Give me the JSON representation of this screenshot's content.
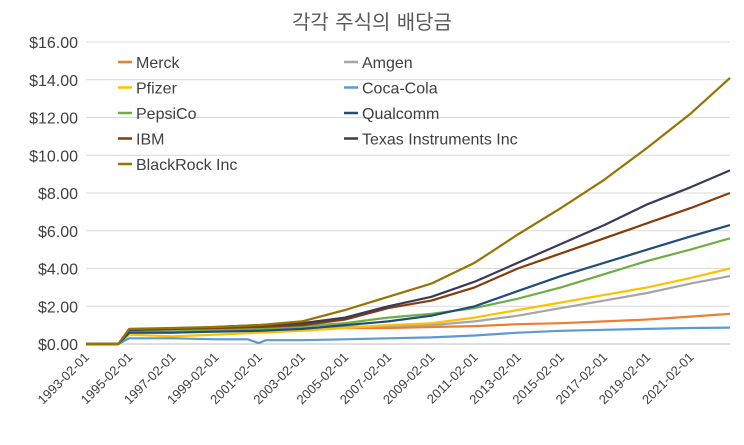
{
  "chart_data": {
    "type": "line",
    "title": "각각 주식의 배당금",
    "xlabel": "",
    "ylabel": "",
    "ylim": [
      0,
      16
    ],
    "yticks": [
      "$0.00",
      "$2.00",
      "$4.00",
      "$6.00",
      "$8.00",
      "$10.00",
      "$12.00",
      "$14.00",
      "$16.00"
    ],
    "xticks": [
      "1993-02-01",
      "1995-02-01",
      "1997-02-01",
      "1999-02-01",
      "2001-02-01",
      "2003-02-01",
      "2005-02-01",
      "2007-02-01",
      "2009-02-01",
      "2011-02-01",
      "2013-02-01",
      "2015-02-01",
      "2017-02-01",
      "2019-02-01",
      "2021-02-01"
    ],
    "xrange": [
      "1993-02-01",
      "2022-12-01"
    ],
    "grid": "horizontal",
    "legend_position": "upper-left",
    "series": [
      {
        "name": "Merck",
        "color": "#ED7D31",
        "points": [
          [
            "1993-02-01",
            0
          ],
          [
            "1994-08-01",
            0
          ],
          [
            "1995-02-01",
            0.6
          ],
          [
            "1997-02-01",
            0.6
          ],
          [
            "1999-02-01",
            0.7
          ],
          [
            "2001-02-01",
            0.75
          ],
          [
            "2003-02-01",
            0.8
          ],
          [
            "2005-02-01",
            0.85
          ],
          [
            "2007-02-01",
            0.85
          ],
          [
            "2009-02-01",
            0.9
          ],
          [
            "2011-02-01",
            0.95
          ],
          [
            "2013-02-01",
            1.05
          ],
          [
            "2015-02-01",
            1.1
          ],
          [
            "2017-02-01",
            1.2
          ],
          [
            "2019-02-01",
            1.3
          ],
          [
            "2021-02-01",
            1.45
          ],
          [
            "2022-12-01",
            1.6
          ]
        ]
      },
      {
        "name": "Amgen",
        "color": "#A5A5A5",
        "points": [
          [
            "1993-02-01",
            0
          ],
          [
            "1994-08-01",
            0
          ],
          [
            "1995-02-01",
            0.7
          ],
          [
            "1997-02-01",
            0.7
          ],
          [
            "1999-02-01",
            0.75
          ],
          [
            "2001-02-01",
            0.8
          ],
          [
            "2003-02-01",
            0.85
          ],
          [
            "2005-02-01",
            0.9
          ],
          [
            "2007-02-01",
            0.95
          ],
          [
            "2009-02-01",
            1.0
          ],
          [
            "2011-02-01",
            1.2
          ],
          [
            "2013-02-01",
            1.5
          ],
          [
            "2015-02-01",
            1.9
          ],
          [
            "2017-02-01",
            2.3
          ],
          [
            "2019-02-01",
            2.7
          ],
          [
            "2021-02-01",
            3.2
          ],
          [
            "2022-12-01",
            3.6
          ]
        ]
      },
      {
        "name": "Pfizer",
        "color": "#FFC000",
        "points": [
          [
            "1993-02-01",
            0
          ],
          [
            "1994-08-01",
            0
          ],
          [
            "1995-02-01",
            0.5
          ],
          [
            "1997-02-01",
            0.4
          ],
          [
            "1999-02-01",
            0.5
          ],
          [
            "2001-02-01",
            0.6
          ],
          [
            "2003-02-01",
            0.7
          ],
          [
            "2005-02-01",
            0.85
          ],
          [
            "2007-02-01",
            1.0
          ],
          [
            "2009-02-01",
            1.1
          ],
          [
            "2011-02-01",
            1.4
          ],
          [
            "2013-02-01",
            1.8
          ],
          [
            "2015-02-01",
            2.2
          ],
          [
            "2017-02-01",
            2.6
          ],
          [
            "2019-02-01",
            3.0
          ],
          [
            "2021-02-01",
            3.5
          ],
          [
            "2022-12-01",
            4.0
          ]
        ]
      },
      {
        "name": "Coca-Cola",
        "color": "#5B9BD5",
        "points": [
          [
            "1993-02-01",
            0
          ],
          [
            "1994-08-01",
            0
          ],
          [
            "1995-02-01",
            0.3
          ],
          [
            "1997-02-01",
            0.3
          ],
          [
            "1999-02-01",
            0.25
          ],
          [
            "2000-08-01",
            0.25
          ],
          [
            "2001-02-01",
            0.05
          ],
          [
            "2001-06-01",
            0.2
          ],
          [
            "2003-02-01",
            0.2
          ],
          [
            "2005-02-01",
            0.25
          ],
          [
            "2007-02-01",
            0.3
          ],
          [
            "2009-02-01",
            0.35
          ],
          [
            "2011-02-01",
            0.45
          ],
          [
            "2013-02-01",
            0.6
          ],
          [
            "2015-02-01",
            0.7
          ],
          [
            "2017-02-01",
            0.75
          ],
          [
            "2019-02-01",
            0.8
          ],
          [
            "2021-02-01",
            0.85
          ],
          [
            "2022-12-01",
            0.87
          ]
        ]
      },
      {
        "name": "PepsiCo",
        "color": "#70AD47",
        "points": [
          [
            "1993-02-01",
            0
          ],
          [
            "1994-08-01",
            0
          ],
          [
            "1995-02-01",
            0.7
          ],
          [
            "1997-02-01",
            0.65
          ],
          [
            "1999-02-01",
            0.75
          ],
          [
            "2001-02-01",
            0.8
          ],
          [
            "2003-02-01",
            0.95
          ],
          [
            "2005-02-01",
            1.1
          ],
          [
            "2007-02-01",
            1.4
          ],
          [
            "2009-02-01",
            1.6
          ],
          [
            "2011-02-01",
            1.9
          ],
          [
            "2013-02-01",
            2.4
          ],
          [
            "2015-02-01",
            3.0
          ],
          [
            "2017-02-01",
            3.7
          ],
          [
            "2019-02-01",
            4.4
          ],
          [
            "2021-02-01",
            5.0
          ],
          [
            "2022-12-01",
            5.6
          ]
        ]
      },
      {
        "name": "Qualcomm",
        "color": "#1F4E79",
        "points": [
          [
            "1993-02-01",
            0
          ],
          [
            "1994-08-01",
            0
          ],
          [
            "1995-02-01",
            0.6
          ],
          [
            "1997-02-01",
            0.6
          ],
          [
            "1999-02-01",
            0.65
          ],
          [
            "2001-02-01",
            0.7
          ],
          [
            "2003-02-01",
            0.8
          ],
          [
            "2005-02-01",
            1.0
          ],
          [
            "2007-02-01",
            1.2
          ],
          [
            "2009-02-01",
            1.5
          ],
          [
            "2011-02-01",
            2.0
          ],
          [
            "2013-02-01",
            2.8
          ],
          [
            "2015-02-01",
            3.6
          ],
          [
            "2017-02-01",
            4.3
          ],
          [
            "2019-02-01",
            5.0
          ],
          [
            "2021-02-01",
            5.7
          ],
          [
            "2022-12-01",
            6.3
          ]
        ]
      },
      {
        "name": "IBM",
        "color": "#843C0C",
        "points": [
          [
            "1993-02-01",
            0
          ],
          [
            "1994-08-01",
            0
          ],
          [
            "1995-02-01",
            0.75
          ],
          [
            "1997-02-01",
            0.8
          ],
          [
            "1999-02-01",
            0.85
          ],
          [
            "2001-02-01",
            0.9
          ],
          [
            "2003-02-01",
            1.0
          ],
          [
            "2005-02-01",
            1.3
          ],
          [
            "2007-02-01",
            1.9
          ],
          [
            "2009-02-01",
            2.3
          ],
          [
            "2011-02-01",
            3.0
          ],
          [
            "2013-02-01",
            4.0
          ],
          [
            "2015-02-01",
            4.8
          ],
          [
            "2017-02-01",
            5.6
          ],
          [
            "2019-02-01",
            6.4
          ],
          [
            "2021-02-01",
            7.2
          ],
          [
            "2022-12-01",
            8.0
          ]
        ]
      },
      {
        "name": "Texas Instruments Inc",
        "color": "#3A3A5A",
        "points": [
          [
            "1993-02-01",
            0
          ],
          [
            "1994-08-01",
            0
          ],
          [
            "1995-02-01",
            0.75
          ],
          [
            "1997-02-01",
            0.8
          ],
          [
            "1999-02-01",
            0.9
          ],
          [
            "2001-02-01",
            1.0
          ],
          [
            "2003-02-01",
            1.1
          ],
          [
            "2005-02-01",
            1.4
          ],
          [
            "2007-02-01",
            2.0
          ],
          [
            "2009-02-01",
            2.5
          ],
          [
            "2011-02-01",
            3.3
          ],
          [
            "2013-02-01",
            4.3
          ],
          [
            "2015-02-01",
            5.3
          ],
          [
            "2017-02-01",
            6.3
          ],
          [
            "2019-02-01",
            7.4
          ],
          [
            "2021-02-01",
            8.3
          ],
          [
            "2022-12-01",
            9.2
          ]
        ]
      },
      {
        "name": "BlackRock Inc",
        "color": "#997300",
        "points": [
          [
            "1993-02-01",
            0
          ],
          [
            "1994-08-01",
            0
          ],
          [
            "1995-02-01",
            0.8
          ],
          [
            "1997-02-01",
            0.85
          ],
          [
            "1999-02-01",
            0.9
          ],
          [
            "2001-02-01",
            1.0
          ],
          [
            "2003-02-01",
            1.2
          ],
          [
            "2005-02-01",
            1.8
          ],
          [
            "2007-02-01",
            2.5
          ],
          [
            "2009-02-01",
            3.2
          ],
          [
            "2011-02-01",
            4.3
          ],
          [
            "2013-02-01",
            5.8
          ],
          [
            "2015-02-01",
            7.2
          ],
          [
            "2017-02-01",
            8.7
          ],
          [
            "2019-02-01",
            10.4
          ],
          [
            "2021-02-01",
            12.2
          ],
          [
            "2022-12-01",
            14.1
          ]
        ]
      }
    ]
  }
}
